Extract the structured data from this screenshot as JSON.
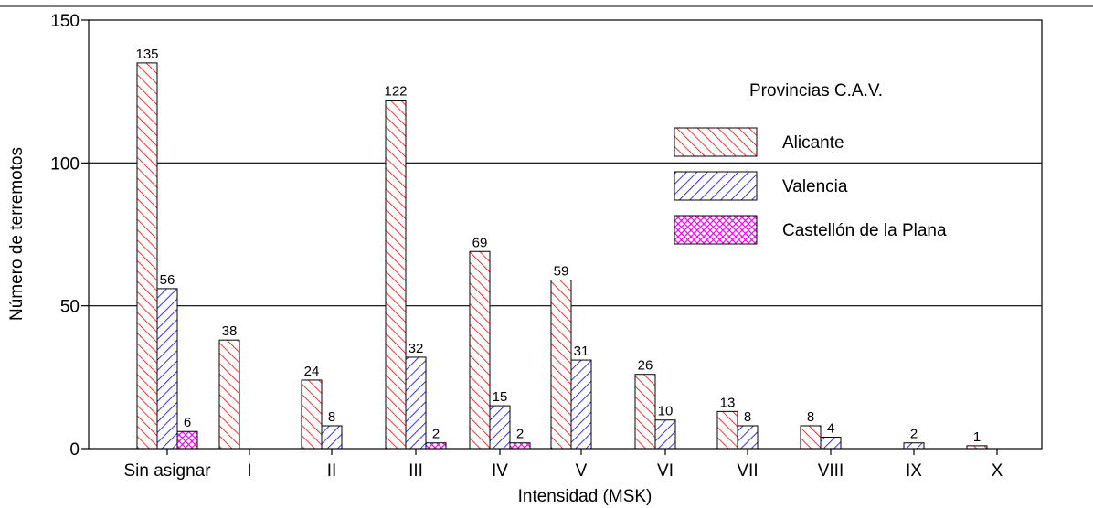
{
  "chart_data": {
    "type": "bar",
    "title": "",
    "xlabel": "Intensidad (MSK)",
    "ylabel": "Número de terremotos",
    "ylim": [
      0,
      150
    ],
    "yticks": [
      0,
      50,
      100,
      150
    ],
    "grid": "horizontal",
    "categories": [
      "Sin asignar",
      "I",
      "II",
      "III",
      "IV",
      "V",
      "VI",
      "VII",
      "VIII",
      "IX",
      "X"
    ],
    "legend": {
      "title": "Provincias C.A.V.",
      "placement": "top-right"
    },
    "series": [
      {
        "name": "Alicante",
        "color": "#ff0000",
        "pattern": "hatch-forward",
        "values": [
          135,
          38,
          24,
          122,
          69,
          59,
          26,
          13,
          8,
          null,
          1
        ],
        "labels": [
          "135",
          "38",
          "24",
          "122",
          "69",
          "59",
          "26",
          "13",
          "8",
          null,
          "1"
        ]
      },
      {
        "name": "Valencia",
        "color": "#0000ff",
        "pattern": "hatch-backward",
        "values": [
          56,
          null,
          8,
          32,
          15,
          31,
          10,
          8,
          4,
          2,
          null
        ],
        "labels": [
          "56",
          null,
          "8",
          "32",
          "15",
          "31",
          "10",
          "8",
          "4",
          "2",
          null
        ]
      },
      {
        "name": "Castellón de la Plana",
        "color": "#ff00ff",
        "pattern": "crosshatch",
        "values": [
          6,
          null,
          null,
          2,
          2,
          null,
          null,
          null,
          null,
          null,
          null
        ],
        "labels": [
          "6",
          null,
          null,
          "2",
          "2",
          null,
          null,
          null,
          null,
          null,
          null
        ]
      }
    ]
  }
}
